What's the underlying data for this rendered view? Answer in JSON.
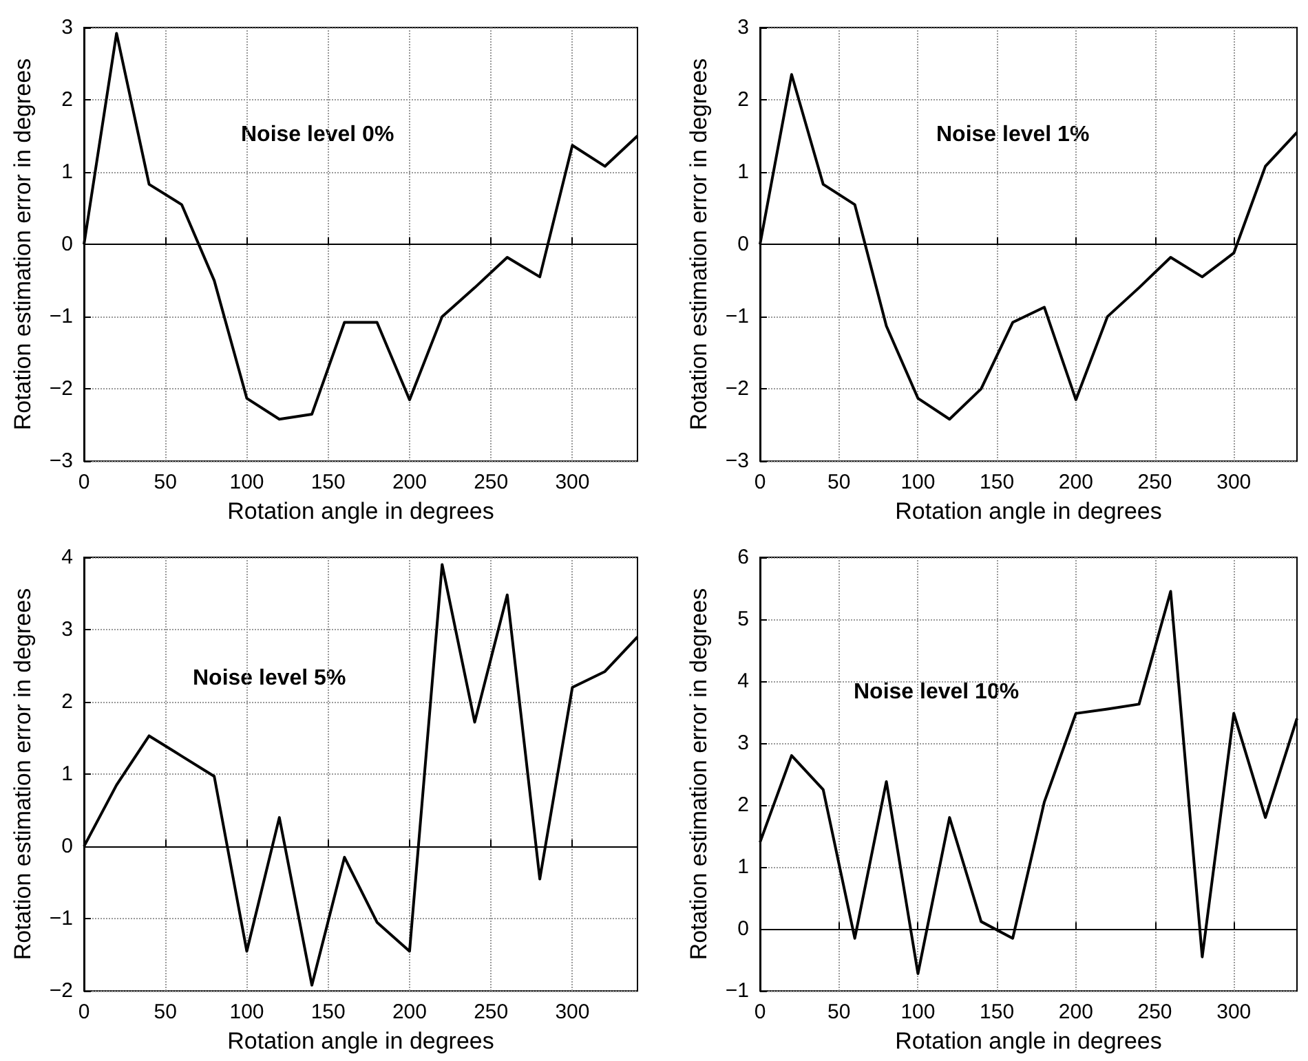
{
  "chart_data": [
    {
      "type": "line",
      "xlabel": "Rotation angle in degrees",
      "ylabel": "Rotation estimation error in degrees",
      "annotations": [
        "Noise level 0%"
      ],
      "x": [
        0,
        20,
        40,
        60,
        80,
        100,
        120,
        140,
        160,
        180,
        200,
        220,
        240,
        260,
        280,
        300,
        320,
        340
      ],
      "xlim": [
        0,
        340
      ],
      "xticks": [
        0,
        50,
        100,
        150,
        200,
        250,
        300
      ],
      "ylim": [
        -3,
        3
      ],
      "yticks": [
        -3,
        -2,
        -1,
        0,
        1,
        2,
        3
      ],
      "grid": true,
      "marker": "none",
      "line_style": "solid",
      "series": [
        {
          "color": "#000000",
          "values": [
            0,
            2.92,
            0.83,
            0.55,
            -0.5,
            -2.13,
            -2.42,
            -2.35,
            -1.08,
            -1.08,
            -2.15,
            -1.0,
            -0.6,
            -0.18,
            -0.45,
            1.37,
            1.08,
            1.5
          ]
        }
      ]
    },
    {
      "type": "line",
      "xlabel": "Rotation angle in degrees",
      "ylabel": "Rotation estimation error in degrees",
      "annotations": [
        "Noise level 1%"
      ],
      "x": [
        0,
        20,
        40,
        60,
        80,
        100,
        120,
        140,
        160,
        180,
        200,
        220,
        240,
        260,
        280,
        300,
        320,
        340
      ],
      "xlim": [
        0,
        340
      ],
      "xticks": [
        0,
        50,
        100,
        150,
        200,
        250,
        300
      ],
      "ylim": [
        -3,
        3
      ],
      "yticks": [
        -3,
        -2,
        -1,
        0,
        1,
        2,
        3
      ],
      "grid": true,
      "marker": "none",
      "line_style": "solid",
      "series": [
        {
          "color": "#000000",
          "values": [
            0,
            2.35,
            0.83,
            0.55,
            -1.13,
            -2.13,
            -2.42,
            -2.0,
            -1.08,
            -0.87,
            -2.15,
            -1.0,
            -0.6,
            -0.18,
            -0.45,
            -0.12,
            1.08,
            1.55
          ]
        }
      ]
    },
    {
      "type": "line",
      "xlabel": "Rotation angle in degrees",
      "ylabel": "Rotation estimation error in degrees",
      "annotations": [
        "Noise level 5%"
      ],
      "x": [
        0,
        20,
        40,
        60,
        80,
        100,
        120,
        140,
        160,
        180,
        200,
        220,
        240,
        260,
        280,
        300,
        320,
        340
      ],
      "xlim": [
        0,
        340
      ],
      "xticks": [
        0,
        50,
        100,
        150,
        200,
        250,
        300
      ],
      "ylim": [
        -2,
        4
      ],
      "yticks": [
        -2,
        -1,
        0,
        1,
        2,
        3,
        4
      ],
      "grid": true,
      "marker": "none",
      "line_style": "solid",
      "series": [
        {
          "color": "#000000",
          "values": [
            0,
            0.85,
            1.53,
            1.25,
            0.97,
            -1.45,
            0.4,
            -1.92,
            -0.15,
            -1.05,
            -1.45,
            3.9,
            1.72,
            3.48,
            -0.45,
            2.2,
            2.42,
            2.9
          ]
        }
      ]
    },
    {
      "type": "line",
      "xlabel": "Rotation angle in degrees",
      "ylabel": "Rotation estimation error in degrees",
      "annotations": [
        "Noise level 10%"
      ],
      "x": [
        0,
        20,
        40,
        60,
        80,
        100,
        120,
        140,
        160,
        180,
        200,
        220,
        240,
        260,
        280,
        300,
        320,
        340
      ],
      "xlim": [
        0,
        340
      ],
      "xticks": [
        0,
        50,
        100,
        150,
        200,
        250,
        300
      ],
      "ylim": [
        -1,
        6
      ],
      "yticks": [
        -1,
        0,
        1,
        2,
        3,
        4,
        5,
        6
      ],
      "grid": true,
      "marker": "none",
      "line_style": "solid",
      "series": [
        {
          "color": "#000000",
          "values": [
            1.4,
            2.8,
            2.25,
            -0.15,
            2.38,
            -0.72,
            1.8,
            0.12,
            -0.15,
            2.05,
            3.48,
            3.55,
            3.63,
            5.45,
            -0.45,
            3.48,
            1.8,
            3.4
          ]
        }
      ]
    }
  ]
}
